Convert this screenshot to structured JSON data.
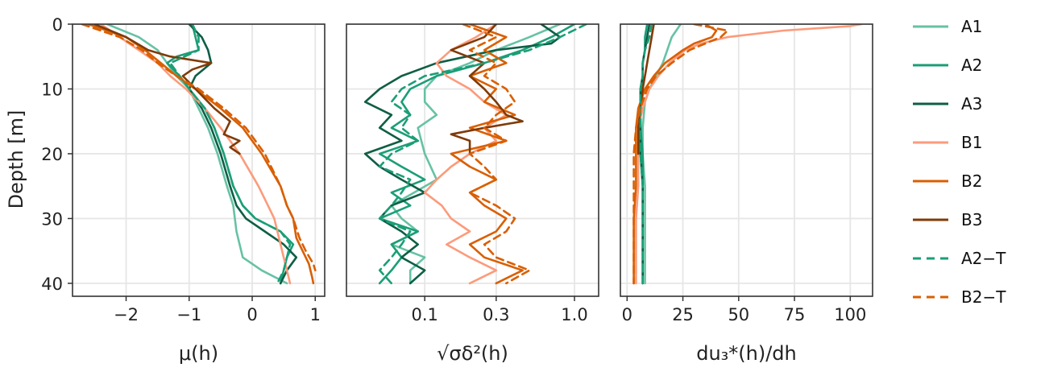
{
  "chart_data": {
    "type": "line",
    "ylabel": "Depth [m]",
    "ylim": [
      0,
      42
    ],
    "y_ticks": [
      0,
      10,
      20,
      30,
      40
    ],
    "grid": true,
    "legend_position": "right",
    "legend": [
      {
        "label": "A1",
        "color": "#66c2a5",
        "dash": false
      },
      {
        "label": "A2",
        "color": "#1b9e77",
        "dash": false
      },
      {
        "label": "A3",
        "color": "#0f5e45",
        "dash": false
      },
      {
        "label": "B1",
        "color": "#fc9b7b",
        "dash": false
      },
      {
        "label": "B2",
        "color": "#d95f02",
        "dash": false
      },
      {
        "label": "B3",
        "color": "#7f3b08",
        "dash": false
      },
      {
        "label": "A2−T",
        "color": "#1b9e77",
        "dash": true
      },
      {
        "label": "B2−T",
        "color": "#d95f02",
        "dash": true
      }
    ],
    "panels": [
      {
        "xlabel": "μ(h)",
        "x_scale": "linear",
        "xlim": [
          -2.85,
          1.15
        ],
        "x_ticks": [
          -2,
          -1,
          0,
          1
        ],
        "x_tick_labels": [
          "−2",
          "−1",
          "0",
          "1"
        ],
        "series": [
          {
            "name": "A1",
            "depth": [
              0,
              2,
              4,
              6,
              8,
              10,
              13,
              16,
              20,
              25,
              28,
              32,
              34,
              36,
              38,
              40
            ],
            "x": [
              -2.3,
              -1.8,
              -1.5,
              -1.35,
              -1.2,
              -1.0,
              -0.85,
              -0.7,
              -0.55,
              -0.4,
              -0.3,
              -0.25,
              -0.2,
              -0.15,
              0.15,
              0.55
            ]
          },
          {
            "name": "A2",
            "depth": [
              0,
              2,
              4,
              5,
              6,
              8,
              10,
              13,
              16,
              20,
              25,
              28,
              30,
              32,
              34,
              36,
              38,
              40
            ],
            "x": [
              -0.95,
              -0.9,
              -0.85,
              -1.2,
              -1.35,
              -1.15,
              -1.0,
              -0.75,
              -0.6,
              -0.45,
              -0.3,
              -0.15,
              0.05,
              0.45,
              0.65,
              0.55,
              0.5,
              0.45
            ]
          },
          {
            "name": "A3",
            "depth": [
              0,
              2,
              4,
              6,
              8,
              10,
              13,
              16,
              20,
              25,
              28,
              30,
              32,
              34,
              36,
              38,
              40
            ],
            "x": [
              -1.0,
              -0.8,
              -0.7,
              -0.65,
              -0.9,
              -1.0,
              -0.8,
              -0.65,
              -0.5,
              -0.35,
              -0.25,
              -0.1,
              0.2,
              0.5,
              0.7,
              0.55,
              0.45
            ]
          },
          {
            "name": "B1",
            "depth": [
              0,
              2,
              4,
              6,
              8,
              10,
              13,
              16,
              20,
              25,
              28,
              30,
              32,
              34,
              36,
              38,
              40
            ],
            "x": [
              -2.4,
              -2.1,
              -1.8,
              -1.5,
              -1.3,
              -1.05,
              -0.75,
              -0.5,
              -0.2,
              0.1,
              0.25,
              0.35,
              0.4,
              0.45,
              0.5,
              0.55,
              0.6
            ]
          },
          {
            "name": "B2",
            "depth": [
              0,
              2,
              4,
              6,
              8,
              10,
              13,
              16,
              20,
              25,
              28,
              30,
              33,
              35,
              37,
              39,
              40
            ],
            "x": [
              -2.6,
              -2.0,
              -1.7,
              -1.45,
              -1.2,
              -0.9,
              -0.5,
              -0.15,
              0.15,
              0.45,
              0.55,
              0.65,
              0.7,
              0.8,
              0.9,
              0.95,
              0.97
            ]
          },
          {
            "name": "B3",
            "depth": [
              0,
              2,
              4,
              5,
              6,
              7,
              8,
              10,
              13,
              15,
              17,
              18,
              19,
              20
            ],
            "x": [
              -2.5,
              -2.0,
              -1.65,
              -1.3,
              -0.65,
              -0.95,
              -1.1,
              -0.9,
              -0.6,
              -0.35,
              -0.45,
              -0.2,
              -0.35,
              -0.2
            ]
          },
          {
            "name": "A2−T",
            "depth": [
              0,
              2,
              4,
              6,
              8,
              10,
              13,
              16,
              20,
              25,
              28,
              30,
              32,
              34,
              36,
              38,
              40
            ],
            "x": [
              -0.95,
              -0.85,
              -0.85,
              -1.3,
              -1.15,
              -1.0,
              -0.75,
              -0.6,
              -0.45,
              -0.3,
              -0.15,
              0.05,
              0.45,
              0.6,
              0.55,
              0.5,
              0.4
            ]
          },
          {
            "name": "B2−T",
            "depth": [
              0,
              2,
              4,
              6,
              8,
              10,
              13,
              16,
              20,
              25,
              28,
              30,
              33,
              35,
              37,
              38
            ],
            "x": [
              -2.7,
              -2.1,
              -1.75,
              -1.5,
              -1.2,
              -0.85,
              -0.45,
              -0.1,
              0.2,
              0.45,
              0.55,
              0.65,
              0.75,
              0.85,
              0.97,
              1.0
            ]
          }
        ]
      },
      {
        "xlabel": "√σδ²(h)",
        "x_scale": "log",
        "xlim": [
          0.03,
          1.45
        ],
        "x_ticks": [
          0.1,
          0.3,
          1.0
        ],
        "x_tick_labels": [
          "0.1",
          "0.3",
          "1.0"
        ],
        "series": [
          {
            "name": "A1",
            "depth": [
              0,
              2,
              4,
              6,
              8,
              10,
              12,
              14,
              16,
              20,
              24,
              28,
              30,
              32,
              34,
              36,
              38,
              40
            ],
            "x": [
              0.8,
              0.5,
              0.3,
              0.2,
              0.12,
              0.1,
              0.1,
              0.12,
              0.09,
              0.1,
              0.12,
              0.06,
              0.07,
              0.09,
              0.06,
              0.1,
              0.08,
              0.08
            ]
          },
          {
            "name": "A2",
            "depth": [
              0,
              2,
              4,
              6,
              8,
              10,
              12,
              14,
              16,
              18,
              20,
              22,
              24,
              26,
              28,
              30,
              32,
              34,
              36,
              38,
              40
            ],
            "x": [
              1.0,
              0.7,
              0.45,
              0.25,
              0.12,
              0.08,
              0.07,
              0.08,
              0.06,
              0.09,
              0.05,
              0.07,
              0.1,
              0.06,
              0.08,
              0.05,
              0.09,
              0.06,
              0.07,
              0.06,
              0.05
            ]
          },
          {
            "name": "A3",
            "depth": [
              0,
              2,
              3,
              4,
              6,
              8,
              10,
              12,
              14,
              16,
              18,
              20,
              22,
              24,
              26,
              28,
              30,
              32,
              34,
              36,
              38,
              40
            ],
            "x": [
              0.6,
              0.8,
              0.7,
              0.3,
              0.12,
              0.07,
              0.05,
              0.04,
              0.06,
              0.05,
              0.07,
              0.04,
              0.05,
              0.07,
              0.1,
              0.06,
              0.05,
              0.07,
              0.09,
              0.07,
              0.1,
              0.08
            ]
          },
          {
            "name": "B1",
            "depth": [
              0,
              2,
              4,
              6,
              8,
              10,
              12,
              14,
              16,
              18,
              20,
              22,
              24,
              26,
              28,
              30,
              32,
              34,
              36,
              38,
              40
            ],
            "x": [
              0.3,
              0.22,
              0.15,
              0.12,
              0.14,
              0.2,
              0.25,
              0.35,
              0.25,
              0.3,
              0.2,
              0.15,
              0.12,
              0.1,
              0.13,
              0.15,
              0.2,
              0.14,
              0.2,
              0.3,
              0.2
            ]
          },
          {
            "name": "B2",
            "depth": [
              0,
              2,
              4,
              6,
              8,
              10,
              12,
              14,
              16,
              18,
              20,
              22,
              24,
              26,
              28,
              30,
              32,
              34,
              36,
              38,
              40
            ],
            "x": [
              0.2,
              0.35,
              0.25,
              0.35,
              0.2,
              0.3,
              0.25,
              0.4,
              0.2,
              0.35,
              0.15,
              0.2,
              0.3,
              0.2,
              0.25,
              0.35,
              0.3,
              0.2,
              0.25,
              0.45,
              0.3
            ]
          },
          {
            "name": "B3",
            "depth": [
              0,
              2,
              4,
              6,
              8,
              10,
              12,
              14,
              15,
              16,
              17,
              18,
              20
            ],
            "x": [
              0.3,
              0.25,
              0.15,
              0.25,
              0.2,
              0.25,
              0.3,
              0.35,
              0.45,
              0.25,
              0.15,
              0.2,
              0.2
            ]
          },
          {
            "name": "A2−T",
            "depth": [
              0,
              2,
              4,
              6,
              8,
              10,
              12,
              14,
              16,
              18,
              20,
              22,
              24,
              26,
              28,
              30,
              32,
              34,
              36,
              38,
              40
            ],
            "x": [
              1.2,
              0.8,
              0.5,
              0.25,
              0.1,
              0.07,
              0.06,
              0.08,
              0.07,
              0.09,
              0.06,
              0.05,
              0.08,
              0.07,
              0.06,
              0.05,
              0.08,
              0.07,
              0.06,
              0.05,
              0.06
            ]
          },
          {
            "name": "B2−T",
            "depth": [
              0,
              2,
              4,
              6,
              8,
              10,
              12,
              14,
              16,
              18,
              20,
              22,
              24,
              26,
              28,
              30,
              32,
              34,
              36,
              38,
              40
            ],
            "x": [
              0.18,
              0.3,
              0.2,
              0.3,
              0.25,
              0.35,
              0.4,
              0.3,
              0.25,
              0.35,
              0.2,
              0.25,
              0.3,
              0.2,
              0.3,
              0.4,
              0.35,
              0.25,
              0.3,
              0.5,
              0.35
            ]
          }
        ]
      },
      {
        "xlabel": "du₃*(h)/dh",
        "x_scale": "linear",
        "xlim": [
          -3,
          110
        ],
        "x_ticks": [
          0,
          25,
          50,
          75,
          100
        ],
        "x_tick_labels": [
          "0",
          "25",
          "50",
          "75",
          "100"
        ],
        "series": [
          {
            "name": "A1",
            "depth": [
              0,
              2,
              4,
              6,
              8,
              10,
              12,
              16,
              20,
              25,
              30,
              35,
              40
            ],
            "x": [
              24,
              20,
              18,
              16,
              13,
              10,
              8,
              7,
              7,
              8,
              8,
              8,
              8
            ]
          },
          {
            "name": "A2",
            "depth": [
              0,
              2,
              4,
              6,
              8,
              10,
              12,
              16,
              20,
              25,
              30,
              35,
              40
            ],
            "x": [
              9,
              8,
              8,
              7,
              7,
              7,
              6,
              6,
              7,
              7,
              7,
              7,
              7
            ]
          },
          {
            "name": "A3",
            "depth": [
              0,
              2,
              4,
              6,
              8,
              10,
              12,
              16,
              20,
              25,
              30,
              35,
              40
            ],
            "x": [
              10,
              9,
              8,
              7,
              7,
              6,
              6,
              6,
              6,
              7,
              7,
              7,
              7
            ]
          },
          {
            "name": "B1",
            "depth": [
              0,
              0.3,
              1,
              2,
              3,
              4,
              6,
              8,
              10,
              13,
              16,
              20,
              25,
              30,
              35,
              40
            ],
            "x": [
              105,
              100,
              70,
              45,
              33,
              26,
              19,
              14,
              10,
              7,
              5,
              5,
              5,
              4,
              4,
              4
            ]
          },
          {
            "name": "B2",
            "depth": [
              0,
              1,
              2,
              3,
              4,
              6,
              8,
              10,
              13,
              16,
              20,
              25,
              30,
              35,
              40
            ],
            "x": [
              35,
              40,
              38,
              30,
              25,
              17,
              12,
              8,
              5,
              4,
              4,
              4,
              3,
              3,
              3
            ]
          },
          {
            "name": "B3",
            "depth": [
              0,
              2,
              4,
              6,
              8,
              10,
              13,
              16,
              18,
              20
            ],
            "x": [
              12,
              11,
              10,
              9,
              8,
              7,
              6,
              5,
              5,
              5
            ]
          },
          {
            "name": "A2−T",
            "depth": [
              0,
              2,
              4,
              6,
              8,
              10,
              12,
              16,
              20,
              25,
              30,
              35,
              40
            ],
            "x": [
              11,
              10,
              8,
              7,
              7,
              6,
              6,
              6,
              6,
              7,
              7,
              7,
              7
            ]
          },
          {
            "name": "B2−T",
            "depth": [
              0,
              1,
              2,
              3,
              4,
              6,
              8,
              10,
              13,
              16,
              20,
              25,
              30,
              35,
              40
            ],
            "x": [
              30,
              45,
              42,
              35,
              28,
              20,
              13,
              9,
              6,
              4,
              3,
              3,
              3,
              3,
              3
            ]
          }
        ]
      }
    ]
  }
}
